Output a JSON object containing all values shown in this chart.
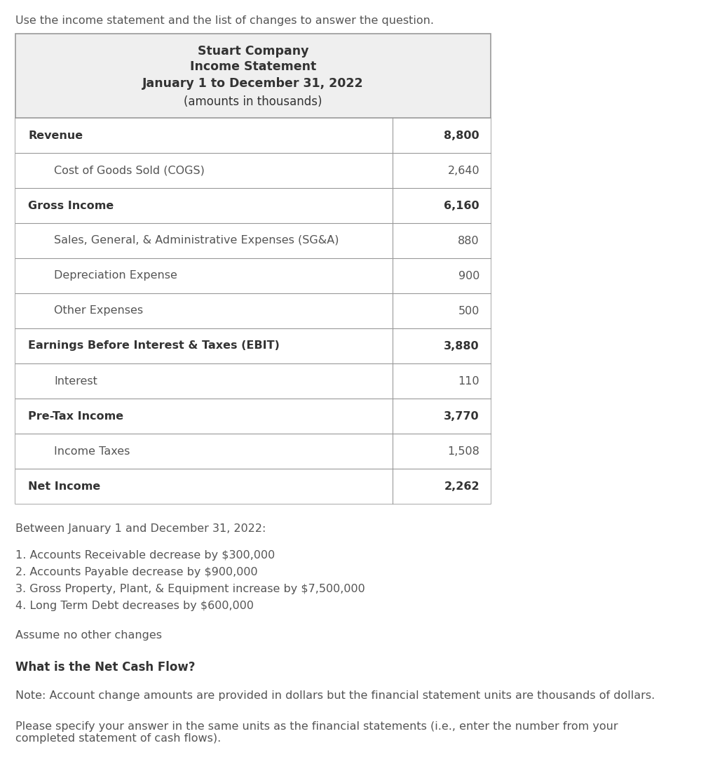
{
  "intro_text": "Use the income statement and the list of changes to answer the question.",
  "company_name": "Stuart Company",
  "statement_type": "Income Statement",
  "period": "January 1 to December 31, 2022",
  "units": "(amounts in thousands)",
  "table_rows": [
    {
      "label": "Revenue",
      "value": "8,800",
      "bold": true,
      "indent": false
    },
    {
      "label": "Cost of Goods Sold (COGS)",
      "value": "2,640",
      "bold": false,
      "indent": true
    },
    {
      "label": "Gross Income",
      "value": "6,160",
      "bold": true,
      "indent": false
    },
    {
      "label": "Sales, General, & Administrative Expenses (SG&A)",
      "value": "880",
      "bold": false,
      "indent": true
    },
    {
      "label": "Depreciation Expense",
      "value": "900",
      "bold": false,
      "indent": true
    },
    {
      "label": "Other Expenses",
      "value": "500",
      "bold": false,
      "indent": true
    },
    {
      "label": "Earnings Before Interest & Taxes (EBIT)",
      "value": "3,880",
      "bold": true,
      "indent": false
    },
    {
      "label": "Interest",
      "value": "110",
      "bold": false,
      "indent": true
    },
    {
      "label": "Pre-Tax Income",
      "value": "3,770",
      "bold": true,
      "indent": false
    },
    {
      "label": "Income Taxes",
      "value": "1,508",
      "bold": false,
      "indent": true
    },
    {
      "label": "Net Income",
      "value": "2,262",
      "bold": true,
      "indent": false
    }
  ],
  "changes_header": "Between January 1 and December 31, 2022:",
  "changes": [
    "1. Accounts Receivable decrease by $300,000",
    "2. Accounts Payable decrease by $900,000",
    "3. Gross Property, Plant, & Equipment increase by $7,500,000",
    "4. Long Term Debt decreases by $600,000"
  ],
  "assume_text": "Assume no other changes",
  "question": "What is the Net Cash Flow?",
  "note": "Note: Account change amounts are provided in dollars but the financial statement units are thousands of dollars.",
  "please_note": "Please specify your answer in the same units as the financial statements (i.e., enter the number from your\ncompleted statement of cash flows).",
  "bg_color": "#ffffff",
  "header_bg": "#efefef",
  "border_color": "#999999",
  "text_color": "#555555",
  "bold_color": "#333333"
}
